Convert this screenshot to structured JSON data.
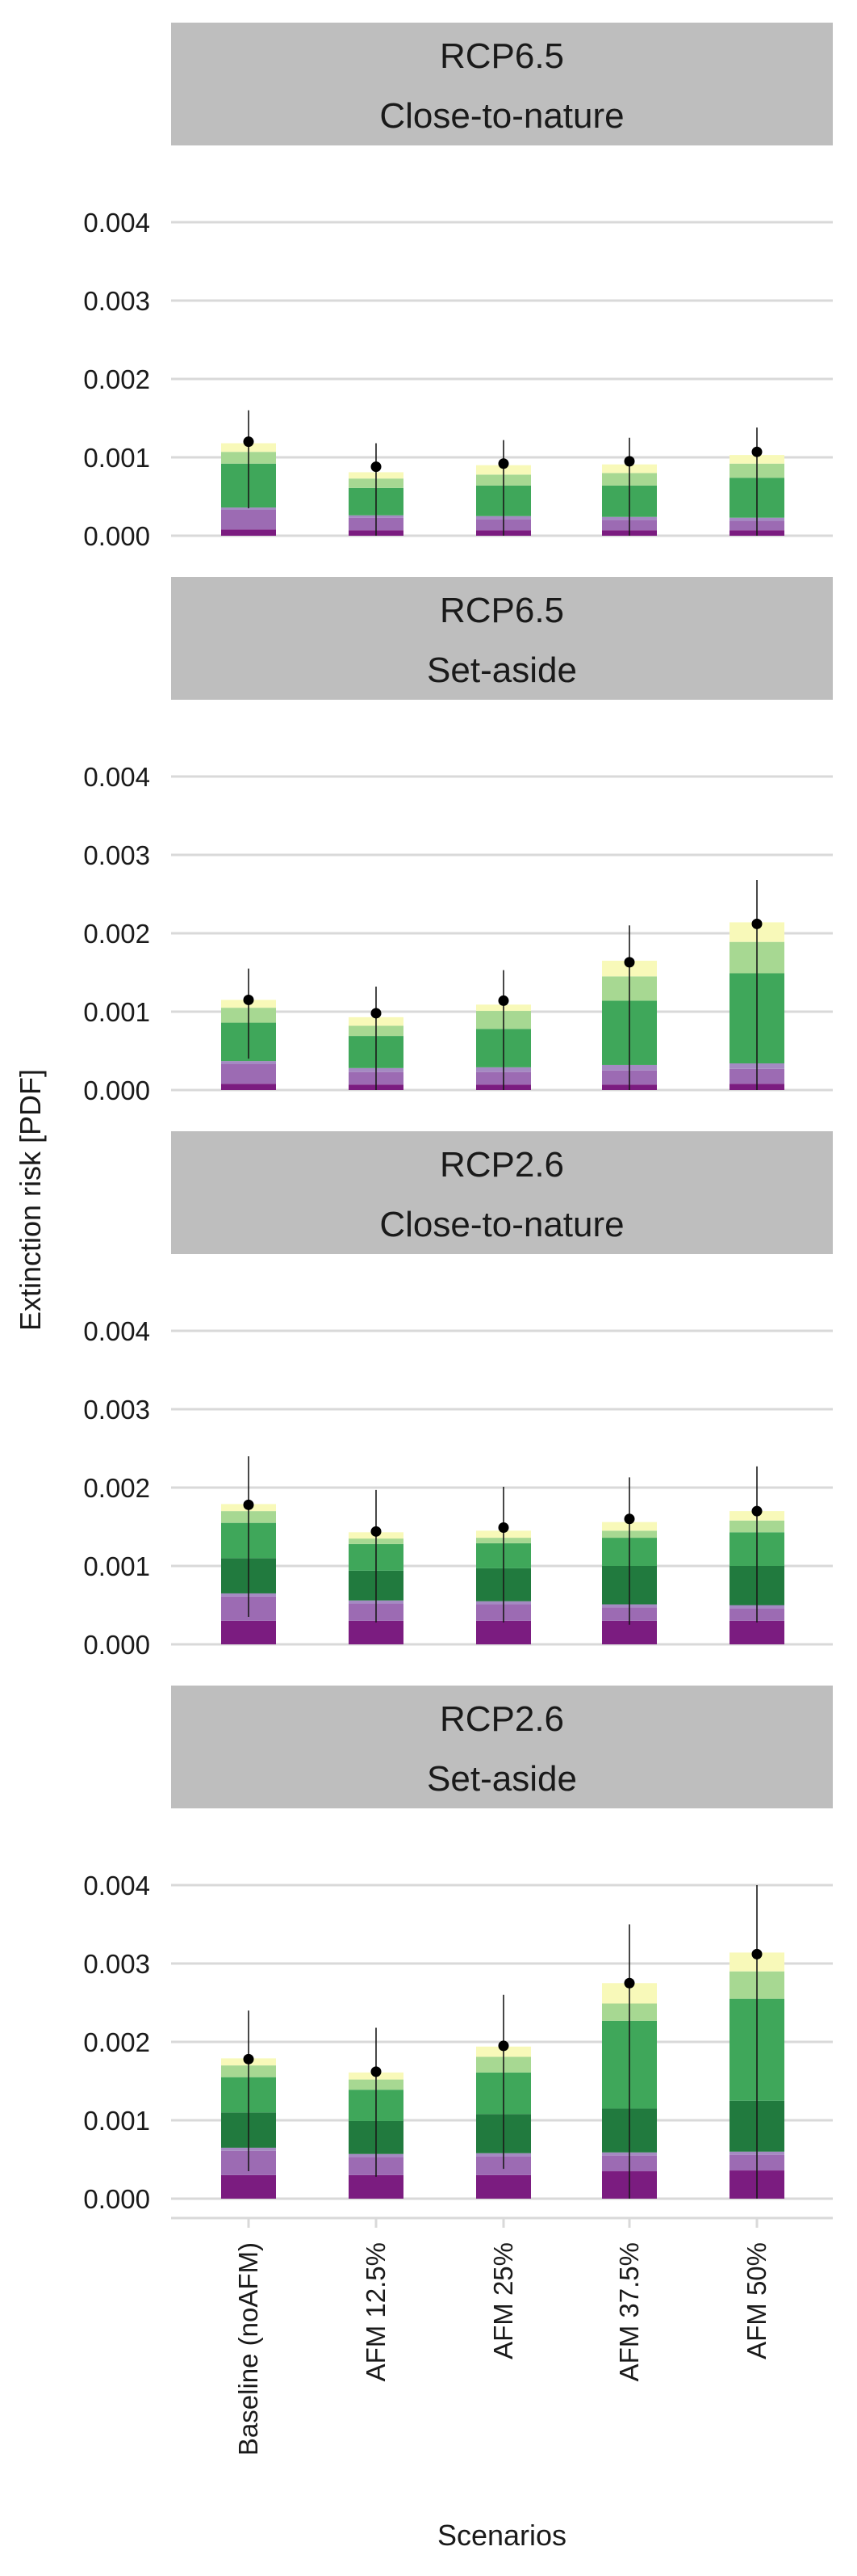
{
  "chart_data": {
    "type": "bar",
    "stacked": true,
    "xlabel": "Scenarios",
    "ylabel": "Extinction risk [PDF]",
    "ylim": [
      0,
      0.0045
    ],
    "yticks": [
      "0.000",
      "0.001",
      "0.002",
      "0.003",
      "0.004"
    ],
    "categories": [
      "Baseline (noAFM)",
      "AFM 12.5%",
      "AFM 25%",
      "AFM 37.5%",
      "AFM 50%"
    ],
    "grid": true,
    "legend": "none",
    "segment_colors": [
      "#7b1c80",
      "#9c6bb3",
      "#a48ac2",
      "#217a3e",
      "#3fa75a",
      "#a7d892",
      "#f8f9b9"
    ],
    "panels": [
      {
        "strip": [
          "RCP6.5",
          "Close-to-nature"
        ],
        "segments": [
          [
            8e-05,
            0.00025,
            3e-05,
            0.0,
            0.00056,
            0.00015,
            0.00011
          ],
          [
            7e-05,
            0.00016,
            3e-05,
            0.0,
            0.00035,
            0.00012,
            8e-05
          ],
          [
            7e-05,
            0.00014,
            4e-05,
            0.0,
            0.00039,
            0.00014,
            0.00012
          ],
          [
            7e-05,
            0.00013,
            4e-05,
            0.0,
            0.0004,
            0.00016,
            0.00011
          ],
          [
            7e-05,
            0.00012,
            4e-05,
            0.0,
            0.00051,
            0.00018,
            0.00011
          ]
        ],
        "points": [
          0.0012,
          0.00088,
          0.00092,
          0.00095,
          0.00107
        ],
        "error_low": [
          0.00035,
          0.0,
          0.0,
          0.0,
          0.0
        ],
        "error_high": [
          0.0016,
          0.00118,
          0.00122,
          0.00125,
          0.00138
        ]
      },
      {
        "strip": [
          "RCP6.5",
          "Set-aside"
        ],
        "segments": [
          [
            8e-05,
            0.00025,
            4e-05,
            0.0,
            0.00049,
            0.00019,
            0.0001
          ],
          [
            7e-05,
            0.00016,
            5e-05,
            0.0,
            0.00041,
            0.00013,
            0.00011
          ],
          [
            7e-05,
            0.00016,
            6e-05,
            0.0,
            0.00049,
            0.00023,
            8e-05
          ],
          [
            7e-05,
            0.00018,
            7e-05,
            0.0,
            0.00082,
            0.00031,
            0.0002
          ],
          [
            8e-05,
            0.00019,
            7e-05,
            0.0,
            0.00115,
            0.0004,
            0.00025
          ]
        ],
        "points": [
          0.00115,
          0.00098,
          0.00114,
          0.00163,
          0.00212
        ],
        "error_low": [
          0.0004,
          0.0,
          0.0,
          0.0,
          0.0
        ],
        "error_high": [
          0.00155,
          0.00132,
          0.00153,
          0.0021,
          0.00268
        ]
      },
      {
        "strip": [
          "RCP2.6",
          "Close-to-nature"
        ],
        "segments": [
          [
            0.0003,
            0.00031,
            4e-05,
            0.00045,
            0.00045,
            0.00015,
            9e-05
          ],
          [
            0.0003,
            0.00022,
            4e-05,
            0.00038,
            0.00034,
            7e-05,
            8e-05
          ],
          [
            0.0003,
            0.00021,
            4e-05,
            0.00042,
            0.00032,
            7e-05,
            9e-05
          ],
          [
            0.0003,
            0.00017,
            4e-05,
            0.00049,
            0.00036,
            9e-05,
            0.00011
          ],
          [
            0.0003,
            0.00016,
            4e-05,
            0.0005,
            0.00043,
            0.00015,
            0.00012
          ]
        ],
        "points": [
          0.00178,
          0.00144,
          0.00149,
          0.0016,
          0.0017
        ],
        "error_low": [
          0.00035,
          0.00028,
          0.00028,
          0.00025,
          0.00028
        ],
        "error_high": [
          0.0024,
          0.00197,
          0.00201,
          0.00213,
          0.00227
        ]
      },
      {
        "strip": [
          "RCP2.6",
          "Set-aside"
        ],
        "segments": [
          [
            0.0003,
            0.00031,
            4e-05,
            0.00045,
            0.00045,
            0.00015,
            9e-05
          ],
          [
            0.0003,
            0.00023,
            4e-05,
            0.00042,
            0.0004,
            0.00013,
            9e-05
          ],
          [
            0.0003,
            0.00024,
            4e-05,
            0.0005,
            0.00053,
            0.0002,
            0.00013
          ],
          [
            0.00035,
            0.0002,
            4e-05,
            0.00056,
            0.00112,
            0.00022,
            0.00026
          ],
          [
            0.00036,
            0.0002,
            4e-05,
            0.00065,
            0.0013,
            0.00035,
            0.00024
          ]
        ],
        "points": [
          0.00178,
          0.00162,
          0.00195,
          0.00275,
          0.00312
        ],
        "error_low": [
          0.00035,
          0.00028,
          0.00038,
          0.0,
          0.0
        ],
        "error_high": [
          0.0024,
          0.00218,
          0.0026,
          0.0035,
          0.004
        ]
      }
    ]
  }
}
